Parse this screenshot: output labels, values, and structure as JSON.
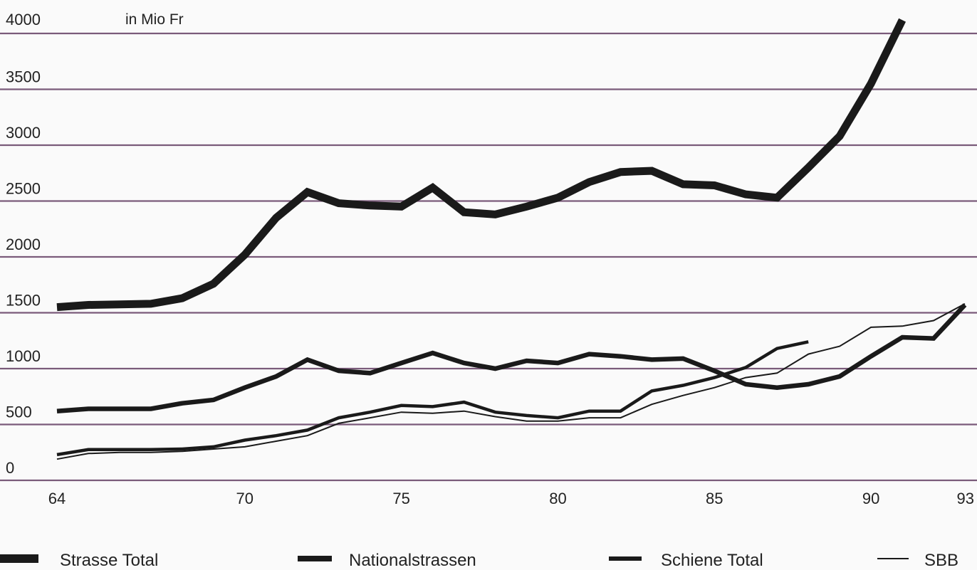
{
  "chart_data": {
    "type": "line",
    "title": "",
    "unit_label": "in Mio Fr",
    "xlabel": "",
    "ylabel": "",
    "xlim": [
      64,
      93
    ],
    "ylim": [
      0,
      4000
    ],
    "x_ticks": [
      {
        "value": 64,
        "label": "64"
      },
      {
        "value": 70,
        "label": "70"
      },
      {
        "value": 75,
        "label": "75"
      },
      {
        "value": 80,
        "label": "80"
      },
      {
        "value": 85,
        "label": "85"
      },
      {
        "value": 90,
        "label": "90"
      },
      {
        "value": 93,
        "label": "93"
      }
    ],
    "y_ticks": [
      {
        "value": 0,
        "label": "0"
      },
      {
        "value": 500,
        "label": "500"
      },
      {
        "value": 1000,
        "label": "1000"
      },
      {
        "value": 1500,
        "label": "1500"
      },
      {
        "value": 2000,
        "label": "2000"
      },
      {
        "value": 2500,
        "label": "2500"
      },
      {
        "value": 3000,
        "label": "3000"
      },
      {
        "value": 3500,
        "label": "3500"
      },
      {
        "value": 4000,
        "label": "4000"
      }
    ],
    "grid": "horizontal",
    "legend_position": "bottom",
    "colors": {
      "gridline": "#7a5b7a",
      "line": "#1a1a1a"
    },
    "series": [
      {
        "name": "Strasse Total",
        "style": "extra-thick",
        "points": [
          {
            "x": 64,
            "y": 1550
          },
          {
            "x": 65,
            "y": 1570
          },
          {
            "x": 66,
            "y": 1575
          },
          {
            "x": 67,
            "y": 1580
          },
          {
            "x": 68,
            "y": 1630
          },
          {
            "x": 69,
            "y": 1760
          },
          {
            "x": 70,
            "y": 2020
          },
          {
            "x": 71,
            "y": 2350
          },
          {
            "x": 72,
            "y": 2580
          },
          {
            "x": 73,
            "y": 2480
          },
          {
            "x": 74,
            "y": 2460
          },
          {
            "x": 75,
            "y": 2450
          },
          {
            "x": 76,
            "y": 2620
          },
          {
            "x": 77,
            "y": 2400
          },
          {
            "x": 78,
            "y": 2380
          },
          {
            "x": 79,
            "y": 2450
          },
          {
            "x": 80,
            "y": 2530
          },
          {
            "x": 81,
            "y": 2670
          },
          {
            "x": 82,
            "y": 2760
          },
          {
            "x": 83,
            "y": 2770
          },
          {
            "x": 84,
            "y": 2650
          },
          {
            "x": 85,
            "y": 2640
          },
          {
            "x": 86,
            "y": 2560
          },
          {
            "x": 87,
            "y": 2530
          },
          {
            "x": 88,
            "y": 2800
          },
          {
            "x": 89,
            "y": 3080
          },
          {
            "x": 90,
            "y": 3550
          },
          {
            "x": 91,
            "y": 4120
          }
        ]
      },
      {
        "name": "Nationalstrassen",
        "style": "thick",
        "points": [
          {
            "x": 64,
            "y": 620
          },
          {
            "x": 65,
            "y": 640
          },
          {
            "x": 66,
            "y": 640
          },
          {
            "x": 67,
            "y": 640
          },
          {
            "x": 68,
            "y": 690
          },
          {
            "x": 69,
            "y": 720
          },
          {
            "x": 70,
            "y": 830
          },
          {
            "x": 71,
            "y": 930
          },
          {
            "x": 72,
            "y": 1080
          },
          {
            "x": 73,
            "y": 980
          },
          {
            "x": 74,
            "y": 960
          },
          {
            "x": 75,
            "y": 1050
          },
          {
            "x": 76,
            "y": 1140
          },
          {
            "x": 77,
            "y": 1050
          },
          {
            "x": 78,
            "y": 1000
          },
          {
            "x": 79,
            "y": 1070
          },
          {
            "x": 80,
            "y": 1050
          },
          {
            "x": 81,
            "y": 1130
          },
          {
            "x": 82,
            "y": 1110
          },
          {
            "x": 83,
            "y": 1080
          },
          {
            "x": 84,
            "y": 1090
          },
          {
            "x": 85,
            "y": 980
          },
          {
            "x": 86,
            "y": 860
          },
          {
            "x": 87,
            "y": 830
          },
          {
            "x": 88,
            "y": 860
          },
          {
            "x": 89,
            "y": 930
          },
          {
            "x": 90,
            "y": 1110
          },
          {
            "x": 91,
            "y": 1280
          },
          {
            "x": 92,
            "y": 1270
          },
          {
            "x": 93,
            "y": 1570
          }
        ]
      },
      {
        "name": "Schiene Total",
        "style": "medium",
        "points": [
          {
            "x": 64,
            "y": 230
          },
          {
            "x": 65,
            "y": 275
          },
          {
            "x": 66,
            "y": 275
          },
          {
            "x": 67,
            "y": 275
          },
          {
            "x": 68,
            "y": 280
          },
          {
            "x": 69,
            "y": 300
          },
          {
            "x": 70,
            "y": 360
          },
          {
            "x": 71,
            "y": 400
          },
          {
            "x": 72,
            "y": 450
          },
          {
            "x": 73,
            "y": 560
          },
          {
            "x": 74,
            "y": 610
          },
          {
            "x": 75,
            "y": 670
          },
          {
            "x": 76,
            "y": 660
          },
          {
            "x": 77,
            "y": 700
          },
          {
            "x": 78,
            "y": 610
          },
          {
            "x": 79,
            "y": 580
          },
          {
            "x": 80,
            "y": 560
          },
          {
            "x": 81,
            "y": 620
          },
          {
            "x": 82,
            "y": 620
          },
          {
            "x": 83,
            "y": 800
          },
          {
            "x": 84,
            "y": 850
          },
          {
            "x": 85,
            "y": 920
          },
          {
            "x": 86,
            "y": 1010
          },
          {
            "x": 87,
            "y": 1180
          },
          {
            "x": 88,
            "y": 1240
          }
        ]
      },
      {
        "name": "SBB",
        "style": "thin",
        "points": [
          {
            "x": 64,
            "y": 190
          },
          {
            "x": 65,
            "y": 240
          },
          {
            "x": 66,
            "y": 250
          },
          {
            "x": 67,
            "y": 250
          },
          {
            "x": 68,
            "y": 260
          },
          {
            "x": 69,
            "y": 280
          },
          {
            "x": 70,
            "y": 300
          },
          {
            "x": 71,
            "y": 350
          },
          {
            "x": 72,
            "y": 400
          },
          {
            "x": 73,
            "y": 510
          },
          {
            "x": 74,
            "y": 560
          },
          {
            "x": 75,
            "y": 610
          },
          {
            "x": 76,
            "y": 600
          },
          {
            "x": 77,
            "y": 620
          },
          {
            "x": 78,
            "y": 570
          },
          {
            "x": 79,
            "y": 530
          },
          {
            "x": 80,
            "y": 530
          },
          {
            "x": 81,
            "y": 560
          },
          {
            "x": 82,
            "y": 560
          },
          {
            "x": 83,
            "y": 680
          },
          {
            "x": 84,
            "y": 760
          },
          {
            "x": 85,
            "y": 830
          },
          {
            "x": 86,
            "y": 920
          },
          {
            "x": 87,
            "y": 960
          },
          {
            "x": 88,
            "y": 1130
          },
          {
            "x": 89,
            "y": 1200
          },
          {
            "x": 90,
            "y": 1370
          },
          {
            "x": 91,
            "y": 1380
          },
          {
            "x": 92,
            "y": 1430
          },
          {
            "x": 93,
            "y": 1580
          }
        ]
      }
    ]
  }
}
